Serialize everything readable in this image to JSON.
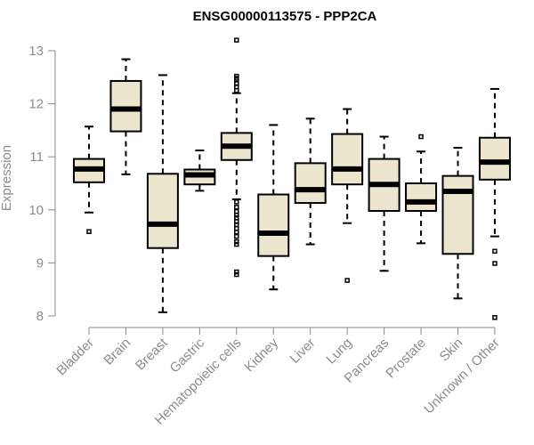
{
  "chart_data": {
    "type": "boxplot",
    "title": "ENSG00000113575 - PPP2CA",
    "xlabel": "",
    "ylabel": "Expression",
    "ylim": [
      8,
      13
    ],
    "yticks": [
      8,
      9,
      10,
      11,
      12,
      13
    ],
    "categories": [
      "Bladder",
      "Brain",
      "Breast",
      "Gastric",
      "Hematopoietic cells",
      "Kidney",
      "Liver",
      "Lung",
      "Pancreas",
      "Prostate",
      "Skin",
      "Unknown / Other"
    ],
    "boxes": [
      {
        "name": "Bladder",
        "whisker_low": 9.95,
        "q1": 10.52,
        "median": 10.77,
        "q3": 10.96,
        "whisker_high": 11.57,
        "outliers": [
          9.59
        ]
      },
      {
        "name": "Brain",
        "whisker_low": 10.67,
        "q1": 11.48,
        "median": 11.9,
        "q3": 12.43,
        "whisker_high": 12.84,
        "outliers": []
      },
      {
        "name": "Breast",
        "whisker_low": 8.07,
        "q1": 9.28,
        "median": 9.73,
        "q3": 10.68,
        "whisker_high": 12.54,
        "outliers": []
      },
      {
        "name": "Gastric",
        "whisker_low": 10.36,
        "q1": 10.48,
        "median": 10.66,
        "q3": 10.76,
        "whisker_high": 11.12,
        "outliers": []
      },
      {
        "name": "Hematopoietic cells",
        "whisker_low": 10.2,
        "q1": 10.94,
        "median": 11.2,
        "q3": 11.45,
        "whisker_high": 12.2,
        "outliers": [
          13.2,
          12.52,
          12.48,
          12.45,
          12.38,
          12.32,
          12.25,
          10.15,
          10.05,
          9.97,
          9.9,
          9.85,
          9.78,
          9.72,
          9.65,
          9.58,
          9.5,
          9.4,
          9.35,
          8.83,
          8.78
        ]
      },
      {
        "name": "Kidney",
        "whisker_low": 8.5,
        "q1": 9.13,
        "median": 9.56,
        "q3": 10.29,
        "whisker_high": 11.6,
        "outliers": []
      },
      {
        "name": "Liver",
        "whisker_low": 9.35,
        "q1": 10.13,
        "median": 10.38,
        "q3": 10.88,
        "whisker_high": 11.72,
        "outliers": []
      },
      {
        "name": "Lung",
        "whisker_low": 9.75,
        "q1": 10.48,
        "median": 10.77,
        "q3": 11.43,
        "whisker_high": 11.9,
        "outliers": [
          8.67
        ]
      },
      {
        "name": "Pancreas",
        "whisker_low": 8.85,
        "q1": 9.98,
        "median": 10.48,
        "q3": 10.96,
        "whisker_high": 11.38,
        "outliers": []
      },
      {
        "name": "Prostate",
        "whisker_low": 9.37,
        "q1": 9.98,
        "median": 10.15,
        "q3": 10.5,
        "whisker_high": 11.1,
        "outliers": [
          11.38
        ]
      },
      {
        "name": "Skin",
        "whisker_low": 8.33,
        "q1": 9.17,
        "median": 10.35,
        "q3": 10.64,
        "whisker_high": 11.17,
        "outliers": []
      },
      {
        "name": "Unknown / Other",
        "whisker_low": 9.5,
        "q1": 10.57,
        "median": 10.9,
        "q3": 11.36,
        "whisker_high": 12.28,
        "outliers": [
          9.22,
          8.99,
          7.97
        ]
      }
    ],
    "box_fill": "#ede6cf",
    "grid": false,
    "legend": "none"
  }
}
